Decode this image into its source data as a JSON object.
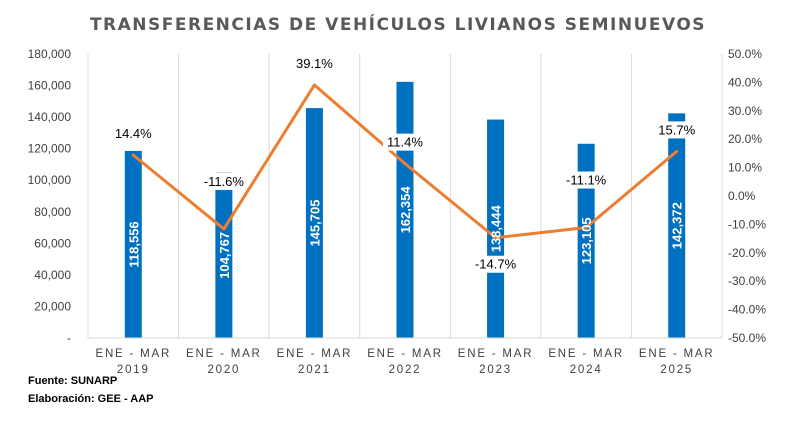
{
  "chart_data": {
    "type": "bar",
    "title": "TRANSFERENCIAS DE VEHÍCULOS LIVIANOS SEMINUEVOS",
    "categories": [
      [
        "ENE - MAR",
        "2019"
      ],
      [
        "ENE - MAR",
        "2020"
      ],
      [
        "ENE - MAR",
        "2021"
      ],
      [
        "ENE - MAR",
        "2022"
      ],
      [
        "ENE - MAR",
        "2023"
      ],
      [
        "ENE - MAR",
        "2024"
      ],
      [
        "ENE - MAR",
        "2025"
      ]
    ],
    "series": [
      {
        "type": "bar",
        "axis": "left",
        "color": "#0070C0",
        "values": [
          118556,
          104767,
          145705,
          162354,
          138444,
          123105,
          142372
        ],
        "labels": [
          "118,556",
          "104,767",
          "145,705",
          "162,354",
          "138,444",
          "123,105",
          "142,372"
        ]
      },
      {
        "type": "line",
        "axis": "right",
        "color": "#ED7D31",
        "values": [
          14.4,
          -11.6,
          39.1,
          11.4,
          -14.7,
          -11.1,
          15.7
        ],
        "labels": [
          "14.4%",
          "-11.6%",
          "39.1%",
          "11.4%",
          "-14.7%",
          "-11.1%",
          "15.7%"
        ]
      }
    ],
    "y_left": {
      "range": [
        0,
        180000
      ],
      "ticks": [
        "-",
        "20,000",
        "40,000",
        "60,000",
        "80,000",
        "100,000",
        "120,000",
        "140,000",
        "160,000",
        "180,000"
      ]
    },
    "y_right": {
      "range": [
        -50,
        50
      ],
      "ticks": [
        "-50.0%",
        "-40.0%",
        "-30.0%",
        "-20.0%",
        "-10.0%",
        "0.0%",
        "10.0%",
        "20.0%",
        "30.0%",
        "40.0%",
        "50.0%"
      ]
    },
    "grid": "vertical"
  },
  "footer": {
    "source": "Fuente: SUNARP",
    "author": "Elaboración: GEE - AAP"
  }
}
